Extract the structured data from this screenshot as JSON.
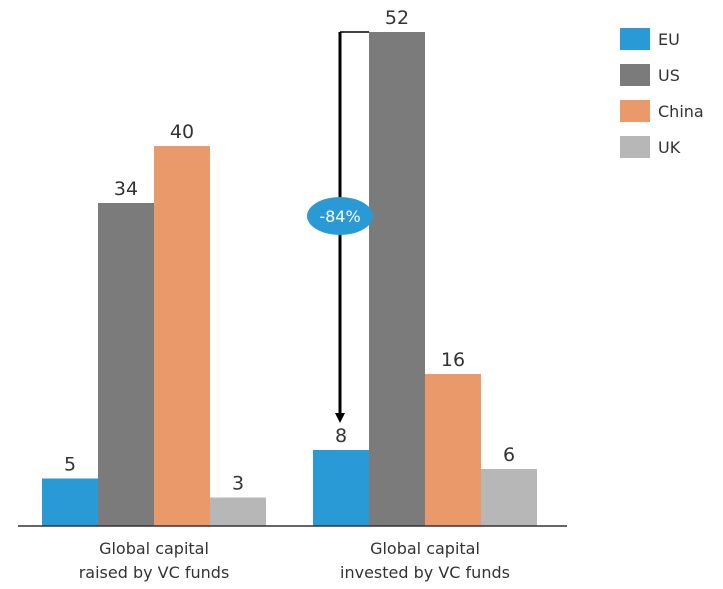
{
  "chart_data": {
    "type": "bar",
    "title": "",
    "xlabel": "",
    "ylabel": "",
    "categories": [
      "Global capital raised by VC funds",
      "Global capital invested by VC funds"
    ],
    "category_lines": [
      [
        "Global capital",
        "raised by VC funds"
      ],
      [
        "Global capital",
        "invested by VC funds"
      ]
    ],
    "series": [
      {
        "name": "EU",
        "color": "#2a9ad6",
        "values": [
          5,
          8
        ]
      },
      {
        "name": "US",
        "color": "#7b7b7b",
        "values": [
          34,
          52
        ]
      },
      {
        "name": "China",
        "color": "#e9996a",
        "values": [
          40,
          16
        ]
      },
      {
        "name": "UK",
        "color": "#b7b7b7",
        "values": [
          3,
          6
        ]
      }
    ],
    "ylim": [
      0,
      52
    ],
    "grid": false,
    "legend_position": "top-right",
    "annotation": {
      "text": "-84%",
      "from_series": "US",
      "to_series": "EU",
      "category": "Global capital invested by VC funds",
      "badge_color": "#2a9ad6"
    }
  }
}
